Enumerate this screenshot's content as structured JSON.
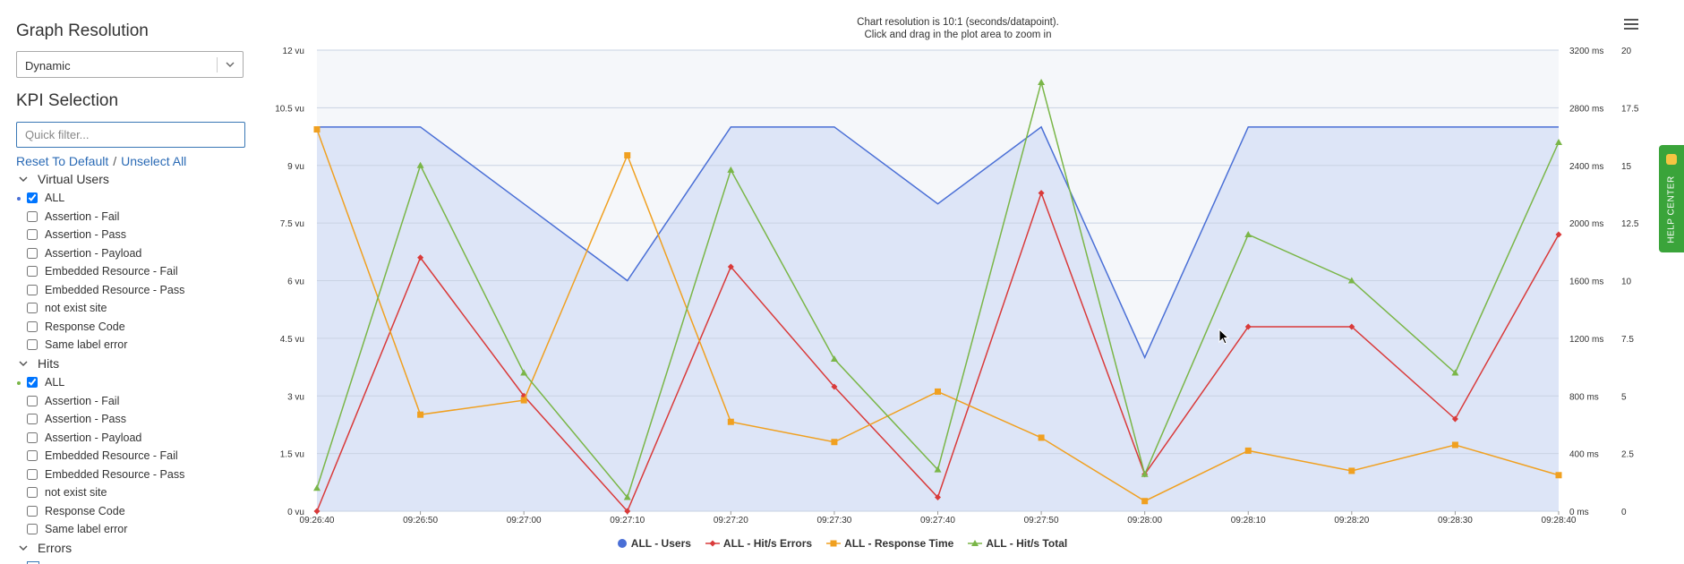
{
  "sidebar": {
    "graph_resolution_title": "Graph Resolution",
    "resolution_value": "Dynamic",
    "kpi_title": "KPI Selection",
    "filter_placeholder": "Quick filter...",
    "reset_link": "Reset To Default",
    "link_separator": "/",
    "unselect_link": "Unselect All",
    "groups": [
      {
        "label": "Virtual Users",
        "dot_color": "#4a6fd6",
        "items": [
          {
            "label": "ALL",
            "checked": true
          },
          {
            "label": "Assertion - Fail",
            "checked": false
          },
          {
            "label": "Assertion - Pass",
            "checked": false
          },
          {
            "label": "Assertion - Payload",
            "checked": false
          },
          {
            "label": "Embedded Resource - Fail",
            "checked": false
          },
          {
            "label": "Embedded Resource - Pass",
            "checked": false
          },
          {
            "label": "not exist site",
            "checked": false
          },
          {
            "label": "Response Code",
            "checked": false
          },
          {
            "label": "Same label error",
            "checked": false
          }
        ]
      },
      {
        "label": "Hits",
        "dot_color": "#7ab648",
        "items": [
          {
            "label": "ALL",
            "checked": true
          },
          {
            "label": "Assertion - Fail",
            "checked": false
          },
          {
            "label": "Assertion - Pass",
            "checked": false
          },
          {
            "label": "Assertion - Payload",
            "checked": false
          },
          {
            "label": "Embedded Resource - Fail",
            "checked": false
          },
          {
            "label": "Embedded Resource - Pass",
            "checked": false
          },
          {
            "label": "not exist site",
            "checked": false
          },
          {
            "label": "Response Code",
            "checked": false
          },
          {
            "label": "Same label error",
            "checked": false
          }
        ]
      },
      {
        "label": "Errors",
        "items": []
      }
    ]
  },
  "chart": {
    "title_line1": "Chart resolution is 10:1 (seconds/datapoint).",
    "title_line2": "Click and drag in the plot area to zoom in"
  },
  "help_center": {
    "label": "HELP CENTER"
  },
  "chart_data": {
    "type": "line",
    "x": [
      "09:26:40",
      "09:26:50",
      "09:27:00",
      "09:27:10",
      "09:27:20",
      "09:27:30",
      "09:27:40",
      "09:27:50",
      "09:28:00",
      "09:28:10",
      "09:28:20",
      "09:28:30",
      "09:28:40"
    ],
    "axes": {
      "left": {
        "ticks": [
          "0 vu",
          "1.5 vu",
          "3 vu",
          "4.5 vu",
          "6 vu",
          "7.5 vu",
          "9 vu",
          "10.5 vu",
          "12 vu"
        ],
        "range": [
          0,
          12
        ]
      },
      "right1": {
        "ticks": [
          "0 ms",
          "400 ms",
          "800 ms",
          "1200 ms",
          "1600 ms",
          "2000 ms",
          "2400 ms",
          "2800 ms",
          "3200 ms"
        ],
        "range": [
          0,
          3200
        ]
      },
      "right2": {
        "ticks": [
          "0",
          "2.5",
          "5",
          "7.5",
          "10",
          "12.5",
          "15",
          "17.5",
          "20"
        ],
        "range": [
          0,
          20
        ]
      }
    },
    "series": [
      {
        "name": "ALL - Users",
        "axis": "left",
        "color": "#4a6fd6",
        "area": true,
        "marker": "none",
        "values": [
          10,
          10,
          null,
          6,
          10,
          10,
          8,
          10,
          4,
          10,
          10,
          10,
          10
        ]
      },
      {
        "name": "ALL - Hit/s Errors",
        "axis": "right2",
        "color": "#d93a3a",
        "marker": "diamond",
        "values": [
          0,
          11,
          5,
          0,
          10.6,
          5.4,
          0.6,
          13.8,
          1.6,
          8,
          8,
          4,
          12
        ]
      },
      {
        "name": "ALL - Response Time",
        "axis": "right1",
        "color": "#f0a020",
        "marker": "square",
        "values": [
          2650,
          670,
          770,
          2470,
          620,
          480,
          830,
          510,
          70,
          420,
          280,
          460,
          250
        ]
      },
      {
        "name": "ALL - Hit/s Total",
        "axis": "right2",
        "color": "#7ab648",
        "marker": "triangle",
        "values": [
          1,
          15,
          6,
          0.6,
          14.8,
          6.6,
          1.8,
          18.6,
          1.6,
          12,
          10,
          6,
          16
        ]
      }
    ],
    "grid": true,
    "legend": "bottom"
  }
}
